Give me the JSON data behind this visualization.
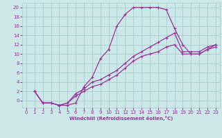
{
  "title": "",
  "xlabel": "Windchill (Refroidissement éolien,°C)",
  "ylabel": "",
  "bg_color": "#cce8e8",
  "grid_color": "#aacccc",
  "line_color": "#993399",
  "xlim": [
    -0.5,
    23.5
  ],
  "ylim": [
    -1.5,
    21
  ],
  "xticks": [
    0,
    1,
    2,
    3,
    4,
    5,
    6,
    7,
    8,
    9,
    10,
    11,
    12,
    13,
    14,
    15,
    16,
    17,
    18,
    19,
    20,
    21,
    22,
    23
  ],
  "yticks": [
    0,
    2,
    4,
    6,
    8,
    10,
    12,
    14,
    16,
    18,
    20
  ],
  "line1_x": [
    1,
    2,
    3,
    4,
    5,
    6,
    7,
    8,
    9,
    10,
    11,
    12,
    13,
    14,
    15,
    16,
    17,
    18,
    19,
    20,
    21,
    22,
    23
  ],
  "line1_y": [
    2,
    -0.5,
    -0.5,
    -1,
    -1,
    -0.5,
    3,
    5,
    9,
    11,
    16,
    18.5,
    20,
    20,
    20,
    20,
    19.5,
    15.5,
    12,
    10,
    10,
    11,
    12
  ],
  "line2_x": [
    1,
    2,
    3,
    4,
    5,
    6,
    7,
    8,
    9,
    10,
    11,
    12,
    13,
    14,
    15,
    16,
    17,
    18,
    19,
    20,
    21,
    22,
    23
  ],
  "line2_y": [
    2,
    -0.5,
    -0.5,
    -1,
    -0.5,
    1.5,
    2.5,
    4.0,
    4.5,
    5.5,
    6.5,
    8.0,
    9.5,
    10.5,
    11.5,
    12.5,
    13.5,
    14.5,
    10.5,
    10.5,
    10.5,
    11.5,
    12
  ],
  "line3_x": [
    1,
    2,
    3,
    4,
    5,
    6,
    7,
    8,
    9,
    10,
    11,
    12,
    13,
    14,
    15,
    16,
    17,
    18,
    19,
    20,
    21,
    22,
    23
  ],
  "line3_y": [
    2,
    -0.5,
    -0.5,
    -1,
    -0.5,
    1.0,
    2.0,
    3.0,
    3.5,
    4.5,
    5.5,
    7.0,
    8.5,
    9.5,
    10.0,
    10.5,
    11.5,
    12.0,
    10.0,
    10.0,
    10.0,
    11.0,
    11.5
  ],
  "tick_fontsize": 5,
  "xlabel_fontsize": 5,
  "linewidth": 0.9,
  "markersize": 3
}
